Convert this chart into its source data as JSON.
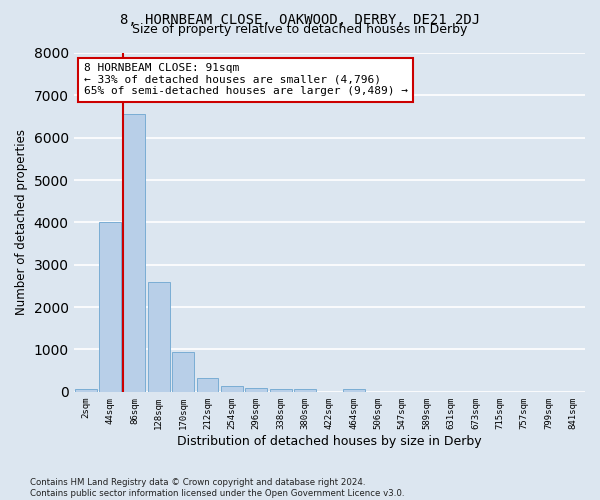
{
  "title": "8, HORNBEAM CLOSE, OAKWOOD, DERBY, DE21 2DJ",
  "subtitle": "Size of property relative to detached houses in Derby",
  "xlabel": "Distribution of detached houses by size in Derby",
  "ylabel": "Number of detached properties",
  "categories": [
    "2sqm",
    "44sqm",
    "86sqm",
    "128sqm",
    "170sqm",
    "212sqm",
    "254sqm",
    "296sqm",
    "338sqm",
    "380sqm",
    "422sqm",
    "464sqm",
    "506sqm",
    "547sqm",
    "589sqm",
    "631sqm",
    "673sqm",
    "715sqm",
    "757sqm",
    "799sqm",
    "841sqm"
  ],
  "values": [
    70,
    4000,
    6550,
    2600,
    950,
    330,
    130,
    100,
    70,
    60,
    0,
    60,
    0,
    0,
    0,
    0,
    0,
    0,
    0,
    0,
    0
  ],
  "bar_color": "#b8cfe8",
  "bar_edge_color": "#7aadd4",
  "bg_color": "#dce6f0",
  "grid_color": "#ffffff",
  "vline_color": "#cc0000",
  "annotation_text": "8 HORNBEAM CLOSE: 91sqm\n← 33% of detached houses are smaller (4,796)\n65% of semi-detached houses are larger (9,489) →",
  "annotation_box_color": "#ffffff",
  "annotation_box_edge": "#cc0000",
  "footer": "Contains HM Land Registry data © Crown copyright and database right 2024.\nContains public sector information licensed under the Open Government Licence v3.0.",
  "ylim": [
    0,
    8000
  ],
  "title_fontsize": 10,
  "subtitle_fontsize": 9,
  "xlabel_fontsize": 9,
  "ylabel_fontsize": 8.5
}
